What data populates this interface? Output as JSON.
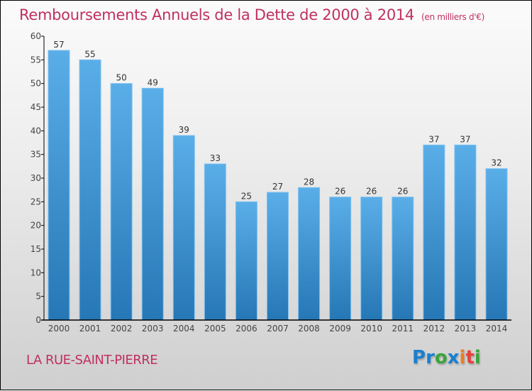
{
  "header": {
    "title": "Remboursements Annuels de la Dette de 2000 à 2014",
    "subtitle": "(en milliers d'€)"
  },
  "footer": {
    "commune": "LA RUE-SAINT-PIERRE",
    "logo": {
      "letters": [
        {
          "char": "P",
          "color": "#1a7fd0"
        },
        {
          "char": "r",
          "color": "#1a7fd0"
        },
        {
          "char": "o",
          "color": "#3aa53a"
        },
        {
          "char": "x",
          "color": "#1a7fd0"
        },
        {
          "char": "i",
          "color": "#f07c1a"
        },
        {
          "char": "t",
          "color": "#e8423a"
        },
        {
          "char": "i",
          "color": "#3aa53a"
        }
      ]
    }
  },
  "colors": {
    "bar_top": "#5aaee8",
    "bar_bottom": "#2677b5",
    "bar_edge": "#7cc0f0",
    "title": "#c0305f",
    "axis": "#000000"
  },
  "chart_data": {
    "type": "bar",
    "title": "Remboursements Annuels de la Dette de 2000 à 2014",
    "subtitle": "(en milliers d'€)",
    "xlabel": "",
    "ylabel": "",
    "categories": [
      "2000",
      "2001",
      "2002",
      "2003",
      "2004",
      "2005",
      "2006",
      "2007",
      "2008",
      "2009",
      "2010",
      "2011",
      "2012",
      "2013",
      "2014"
    ],
    "values": [
      57,
      55,
      50,
      49,
      39,
      33,
      25,
      27,
      28,
      26,
      26,
      26,
      37,
      37,
      32
    ],
    "ylim": [
      0,
      60
    ],
    "yticks": [
      0,
      5,
      10,
      15,
      20,
      25,
      30,
      35,
      40,
      45,
      50,
      55,
      60
    ],
    "grid": false,
    "legend": "none",
    "data_labels": true
  }
}
